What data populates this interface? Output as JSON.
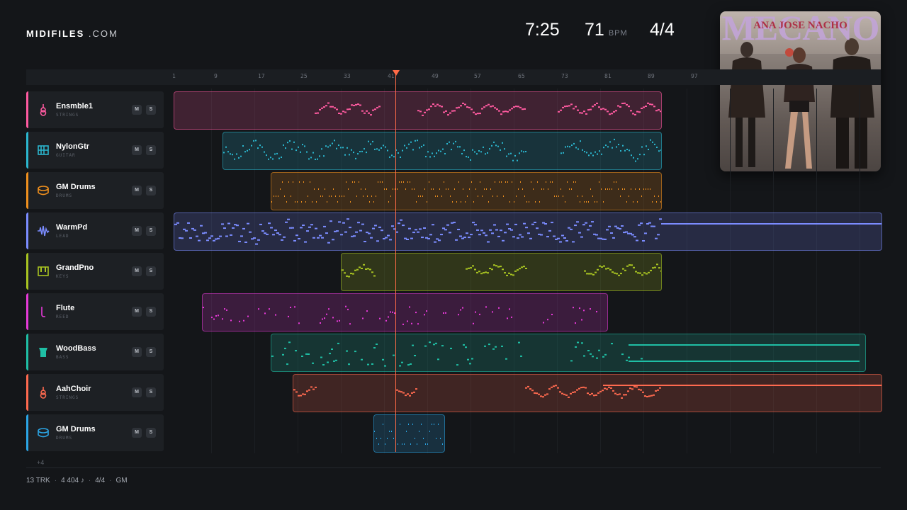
{
  "brand": {
    "name": "MIDIFILES",
    "suffix": ".COM"
  },
  "header": {
    "duration": "7:25",
    "tempo": "71",
    "tempo_unit": "BPM",
    "time_signature": "4/4"
  },
  "album": {
    "title": "MECANO",
    "subtitle": "ANA JOSE NACHO"
  },
  "ruler": {
    "marks": [
      "1",
      "9",
      "17",
      "25",
      "33",
      "41",
      "49",
      "57",
      "65",
      "73",
      "81",
      "89",
      "97"
    ]
  },
  "tracks": [
    {
      "name": "Ensmble1",
      "type": "STRINGS",
      "color": "#ff5aa0",
      "icon": "violin-icon",
      "mute": "M",
      "solo": "S"
    },
    {
      "name": "NylonGtr",
      "type": "GUITAR",
      "color": "#2bb7cf",
      "icon": "guitar-neck-icon",
      "mute": "M",
      "solo": "S"
    },
    {
      "name": "GM Drums",
      "type": "DRUMS",
      "color": "#f0901e",
      "icon": "drum-icon",
      "mute": "M",
      "solo": "S"
    },
    {
      "name": "WarmPd",
      "type": "LEAD",
      "color": "#7b8cff",
      "icon": "waveform-icon",
      "mute": "M",
      "solo": "S"
    },
    {
      "name": "GrandPno",
      "type": "KEYS",
      "color": "#a8c421",
      "icon": "piano-icon",
      "mute": "M",
      "solo": "S"
    },
    {
      "name": "Flute",
      "type": "REED",
      "color": "#e63ad8",
      "icon": "flute-icon",
      "mute": "M",
      "solo": "S"
    },
    {
      "name": "WoodBass",
      "type": "BASS",
      "color": "#1fbfa5",
      "icon": "bass-icon",
      "mute": "M",
      "solo": "S"
    },
    {
      "name": "AahChoir",
      "type": "STRINGS",
      "color": "#ff6a4f",
      "icon": "violin-icon",
      "mute": "M",
      "solo": "S"
    },
    {
      "name": "GM Drums",
      "type": "DRUMS",
      "color": "#2ba6e6",
      "icon": "drum-icon",
      "mute": "M",
      "solo": "S"
    }
  ],
  "more_tracks": "+4",
  "footer": {
    "tracks": "13 TRK",
    "notes": "4 404 ♪",
    "signature": "4/4",
    "standard": "GM"
  },
  "playhead_bar": 42
}
